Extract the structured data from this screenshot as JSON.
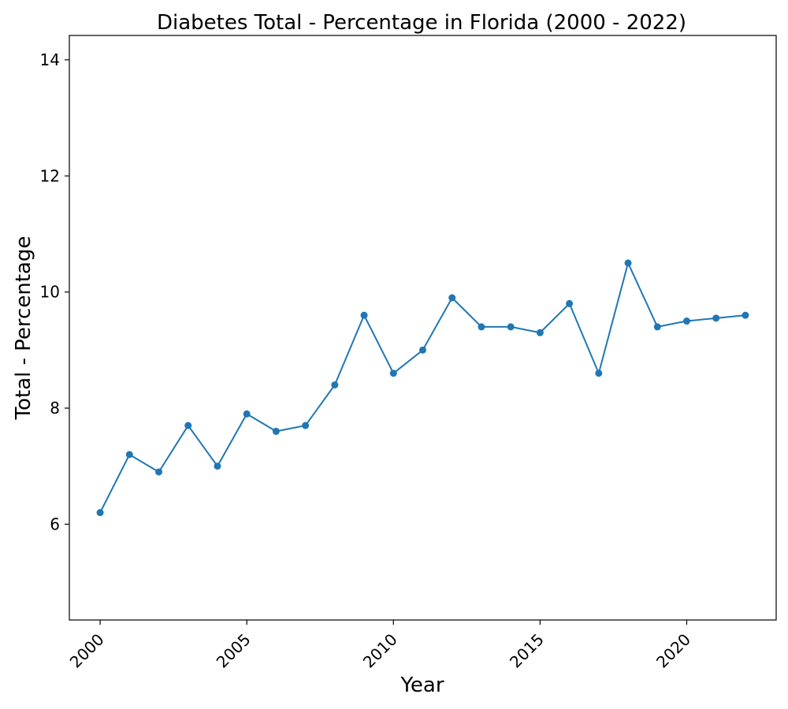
{
  "chart_data": {
    "type": "line",
    "title": "Diabetes Total - Percentage in Florida (2000 - 2022)",
    "xlabel": "Year",
    "ylabel": "Total - Percentage",
    "xlim": [
      1998.95,
      2023.05
    ],
    "ylim": [
      4.35,
      14.42
    ],
    "x_ticks": [
      2000,
      2005,
      2010,
      2015,
      2020
    ],
    "y_ticks": [
      6,
      8,
      10,
      12,
      14
    ],
    "grid": false,
    "series": [
      {
        "color": "#1f77b4",
        "x": [
          2000,
          2001,
          2002,
          2003,
          2004,
          2005,
          2006,
          2007,
          2008,
          2009,
          2010,
          2011,
          2012,
          2013,
          2014,
          2015,
          2016,
          2017,
          2018,
          2019,
          2020,
          2021,
          2022
        ],
        "values": [
          6.2,
          7.2,
          6.9,
          7.7,
          7.0,
          7.9,
          7.6,
          7.7,
          8.4,
          9.6,
          8.6,
          9.0,
          9.9,
          9.4,
          9.4,
          9.3,
          9.8,
          8.6,
          10.5,
          9.4,
          9.5,
          9.55,
          9.6
        ]
      }
    ]
  }
}
